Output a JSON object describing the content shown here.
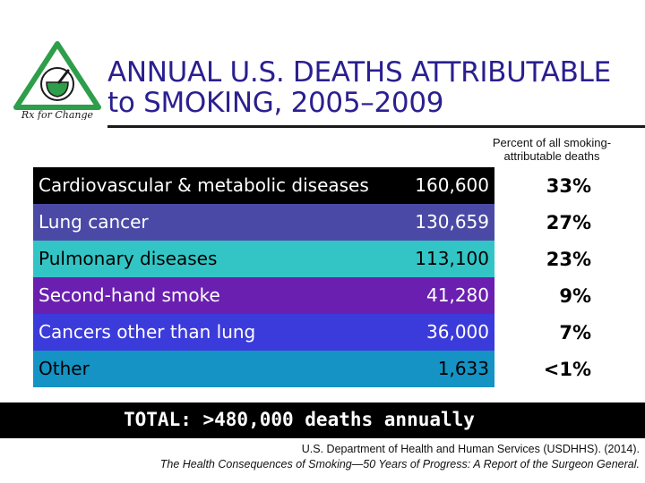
{
  "logo": {
    "caption": "Rx for Change"
  },
  "title": {
    "line1": "ANNUAL U.S. DEATHS ATTRIBUTABLE",
    "line2": "to SMOKING, 2005–2009"
  },
  "percent_header": "Percent of all smoking-attributable deaths",
  "rows": [
    {
      "label": "Cardiovascular & metabolic diseases",
      "count": "160,600",
      "percent": "33%",
      "bg": "#000000",
      "fg": "#ffffff"
    },
    {
      "label": "Lung cancer",
      "count": "130,659",
      "percent": "27%",
      "bg": "#4a4aa6",
      "fg": "#ffffff"
    },
    {
      "label": "Pulmonary diseases",
      "count": "113,100",
      "percent": "23%",
      "bg": "#33c5c5",
      "fg": "#000000"
    },
    {
      "label": "Second-hand smoke",
      "count": "41,280",
      "percent": "9%",
      "bg": "#6a1fb0",
      "fg": "#ffffff"
    },
    {
      "label": "Cancers other than lung",
      "count": "36,000",
      "percent": "7%",
      "bg": "#3b3bdb",
      "fg": "#ffffff"
    },
    {
      "label": "Other",
      "count": "1,633",
      "percent": "<1%",
      "bg": "#1493c4",
      "fg": "#000000"
    }
  ],
  "total": "TOTAL: >480,000 deaths annually",
  "citation": {
    "line1": "U.S. Department of Health and Human Services (USDHHS). (2014).",
    "line2": "The Health Consequences of Smoking—50 Years of Progress: A Report of the Surgeon General."
  },
  "colors": {
    "title": "#2a1f8f",
    "logo_green": "#2e9e4a",
    "logo_red": "#c0392b"
  }
}
